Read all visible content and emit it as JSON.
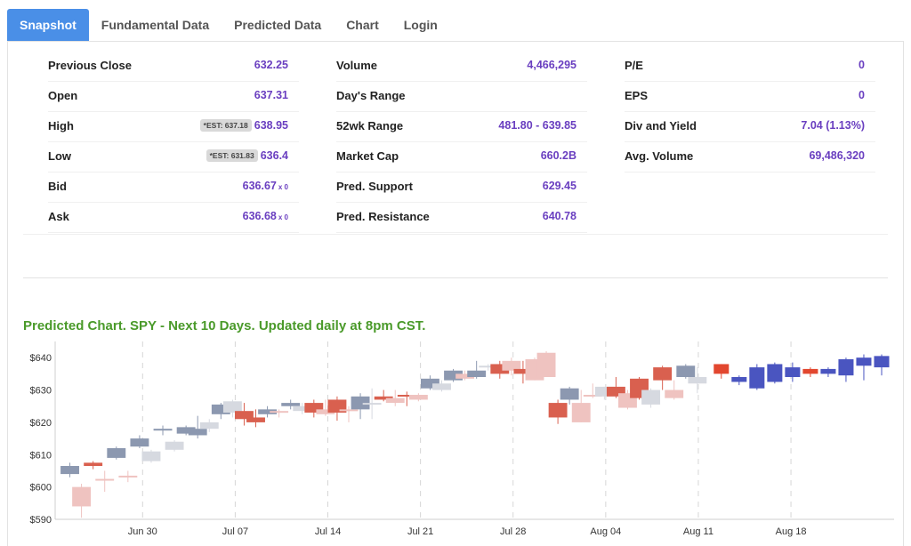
{
  "tabs": [
    {
      "label": "Snapshot",
      "active": true
    },
    {
      "label": "Fundamental Data",
      "active": false
    },
    {
      "label": "Predicted Data",
      "active": false
    },
    {
      "label": "Chart",
      "active": false
    },
    {
      "label": "Login",
      "active": false
    }
  ],
  "stats": {
    "col1": [
      {
        "label": "Previous Close",
        "value": "632.25"
      },
      {
        "label": "Open",
        "value": "637.31"
      },
      {
        "label": "High",
        "value": "638.95",
        "est": "*EST: 637.18"
      },
      {
        "label": "Low",
        "value": "636.4",
        "est": "*EST: 631.83"
      },
      {
        "label": "Bid",
        "value": "636.67",
        "suffix": "x 0"
      },
      {
        "label": "Ask",
        "value": "636.68",
        "suffix": "x 0"
      }
    ],
    "col2": [
      {
        "label": "Volume",
        "value": "4,466,295"
      },
      {
        "label": "Day's Range",
        "value": ""
      },
      {
        "label": "52wk Range",
        "value": "481.80 - 639.85"
      },
      {
        "label": "Market Cap",
        "value": "660.2B"
      },
      {
        "label": "Pred. Support",
        "value": "629.45"
      },
      {
        "label": "Pred. Resistance",
        "value": "640.78"
      }
    ],
    "col3": [
      {
        "label": "P/E",
        "value": "0"
      },
      {
        "label": "EPS",
        "value": "0"
      },
      {
        "label": "Div and Yield",
        "value": "7.04 (1.13%)"
      },
      {
        "label": "Avg. Volume",
        "value": "69,486,320"
      }
    ]
  },
  "chart_heading": "Predicted Chart. SPY - Next 10 Days. Updated daily at 8pm CST.",
  "colors": {
    "active_tab": "#4a8fe7",
    "value_text": "#6a3fc0",
    "heading_green": "#4a9a2a",
    "hist_up": "#8c98b0",
    "hist_up_light": "#d6d9e0",
    "hist_down": "#d9604f",
    "hist_down_light": "#efc3c0",
    "pred_up": "#4a55c0",
    "pred_down": "#e2472f"
  },
  "chart_data": {
    "type": "candlestick",
    "ylim": [
      590,
      645
    ],
    "y_ticks": [
      590,
      600,
      610,
      620,
      630,
      640
    ],
    "y_tick_labels": [
      "$590",
      "$600",
      "$610",
      "$620",
      "$630",
      "$640"
    ],
    "x_ticks": [
      {
        "label": "Jun 30",
        "index": 4
      },
      {
        "label": "Jul 07",
        "index": 9
      },
      {
        "label": "Jul 14",
        "index": 14
      },
      {
        "label": "Jul 21",
        "index": 19
      },
      {
        "label": "Jul 28",
        "index": 24
      },
      {
        "label": "Aug 04",
        "index": 29
      },
      {
        "label": "Aug 11",
        "index": 34
      },
      {
        "label": "Aug 18",
        "index": 39
      }
    ],
    "candles": [
      {
        "o": 604.0,
        "h": 607.5,
        "c": 606.5,
        "l": 603.0,
        "k": "hu"
      },
      {
        "o": 600.0,
        "h": 601.0,
        "c": 594.0,
        "l": 590.5,
        "k": "hdl"
      },
      {
        "o": 606.5,
        "h": 608.0,
        "c": 607.5,
        "l": 605.5,
        "k": "hd"
      },
      {
        "o": 602.5,
        "h": 605.0,
        "c": 602.0,
        "l": 598.5,
        "k": "hdl"
      },
      {
        "o": 609.0,
        "h": 612.5,
        "c": 612.0,
        "l": 608.5,
        "k": "hu"
      },
      {
        "o": 603.5,
        "h": 605.0,
        "c": 603.0,
        "l": 601.5,
        "k": "hdl"
      },
      {
        "o": 612.5,
        "h": 616.0,
        "c": 615.0,
        "l": 612.0,
        "k": "hu"
      },
      {
        "o": 608.0,
        "h": 611.5,
        "c": 611.0,
        "l": 607.5,
        "k": "hul"
      },
      {
        "o": 617.5,
        "h": 619.0,
        "c": 618.0,
        "l": 616.0,
        "k": "hu"
      },
      {
        "o": 611.5,
        "h": 614.5,
        "c": 614.0,
        "l": 611.0,
        "k": "hul"
      },
      {
        "o": 616.5,
        "h": 619.0,
        "c": 618.5,
        "l": 616.0,
        "k": "hu"
      },
      {
        "o": 616.0,
        "h": 622.0,
        "c": 618.0,
        "l": 615.0,
        "k": "hu"
      },
      {
        "o": 618.0,
        "h": 621.0,
        "c": 620.0,
        "l": 617.0,
        "k": "hul"
      },
      {
        "o": 622.5,
        "h": 626.0,
        "c": 625.5,
        "l": 621.0,
        "k": "hu"
      },
      {
        "o": 623.0,
        "h": 627.0,
        "c": 626.5,
        "l": 621.5,
        "k": "hul"
      },
      {
        "o": 623.5,
        "h": 626.0,
        "c": 621.0,
        "l": 619.0,
        "k": "hd"
      },
      {
        "o": 621.5,
        "h": 624.0,
        "c": 620.0,
        "l": 618.5,
        "k": "hd"
      },
      {
        "o": 622.5,
        "h": 625.0,
        "c": 624.0,
        "l": 621.5,
        "k": "hu"
      },
      {
        "o": 623.5,
        "h": 624.0,
        "c": 623.0,
        "l": 621.5,
        "k": "hdl"
      },
      {
        "o": 625.0,
        "h": 627.0,
        "c": 626.0,
        "l": 624.0,
        "k": "hu"
      },
      {
        "o": 623.5,
        "h": 626.0,
        "c": 625.0,
        "l": 622.5,
        "k": "hul"
      },
      {
        "o": 626.0,
        "h": 627.0,
        "c": 623.0,
        "l": 621.5,
        "k": "hd"
      },
      {
        "o": 624.0,
        "h": 627.0,
        "c": 622.5,
        "l": 622.0,
        "k": "hdl"
      },
      {
        "o": 627.0,
        "h": 628.0,
        "c": 623.0,
        "l": 620.5,
        "k": "hd"
      },
      {
        "o": 624.0,
        "h": 625.0,
        "c": 623.5,
        "l": 620.0,
        "k": "hdl"
      },
      {
        "o": 624.0,
        "h": 629.0,
        "c": 628.0,
        "l": 621.0,
        "k": "hu"
      },
      {
        "o": 626.0,
        "h": 630.5,
        "c": 626.0,
        "l": 621.0,
        "k": "hul"
      },
      {
        "o": 628.0,
        "h": 630.0,
        "c": 627.0,
        "l": 626.5,
        "k": "hd"
      },
      {
        "o": 627.5,
        "h": 630.0,
        "c": 626.0,
        "l": 625.0,
        "k": "hdl"
      },
      {
        "o": 628.5,
        "h": 629.5,
        "c": 628.0,
        "l": 625.0,
        "k": "hd"
      },
      {
        "o": 627.0,
        "h": 629.0,
        "c": 628.5,
        "l": 626.5,
        "k": "hdl"
      },
      {
        "o": 630.5,
        "h": 634.5,
        "c": 633.5,
        "l": 630.0,
        "k": "hu"
      },
      {
        "o": 630.0,
        "h": 633.0,
        "c": 632.0,
        "l": 629.5,
        "k": "hul"
      },
      {
        "o": 633.0,
        "h": 636.5,
        "c": 636.0,
        "l": 632.5,
        "k": "hu"
      },
      {
        "o": 633.5,
        "h": 636.0,
        "c": 635.0,
        "l": 633.0,
        "k": "hdl"
      },
      {
        "o": 634.0,
        "h": 639.0,
        "c": 636.0,
        "l": 633.5,
        "k": "hu"
      },
      {
        "o": 637.5,
        "h": 638.0,
        "c": 637.0,
        "l": 636.0,
        "k": "hul"
      },
      {
        "o": 638.0,
        "h": 639.0,
        "c": 635.0,
        "l": 633.5,
        "k": "hd"
      },
      {
        "o": 639.0,
        "h": 640.0,
        "c": 636.0,
        "l": 634.5,
        "k": "hdl"
      },
      {
        "o": 636.5,
        "h": 639.0,
        "c": 635.0,
        "l": 632.0,
        "k": "hd"
      },
      {
        "o": 639.5,
        "h": 640.0,
        "c": 633.0,
        "l": 633.0,
        "k": "hdl"
      },
      {
        "o": 641.5,
        "h": 642.0,
        "c": 634.0,
        "l": 634.0,
        "k": "hdl"
      },
      {
        "o": 626.0,
        "h": 627.0,
        "c": 621.5,
        "l": 619.5,
        "k": "hd"
      },
      {
        "o": 627.0,
        "h": 631.0,
        "c": 630.5,
        "l": 625.5,
        "k": "hu"
      },
      {
        "o": 626.0,
        "h": 630.0,
        "c": 620.0,
        "l": 620.0,
        "k": "hdl"
      },
      {
        "o": 628.5,
        "h": 632.0,
        "c": 628.0,
        "l": 627.5,
        "k": "hdl"
      },
      {
        "o": 628.0,
        "h": 631.0,
        "c": 631.0,
        "l": 627.0,
        "k": "hul"
      },
      {
        "o": 631.0,
        "h": 634.0,
        "c": 628.0,
        "l": 627.5,
        "k": "hd"
      },
      {
        "o": 629.0,
        "h": 630.0,
        "c": 624.5,
        "l": 624.0,
        "k": "hdl"
      },
      {
        "o": 633.5,
        "h": 634.0,
        "c": 627.5,
        "l": 627.0,
        "k": "hd"
      },
      {
        "o": 625.5,
        "h": 630.5,
        "c": 630.0,
        "l": 624.5,
        "k": "hul"
      },
      {
        "o": 637.0,
        "h": 637.5,
        "c": 633.0,
        "l": 630.0,
        "k": "hd"
      },
      {
        "o": 630.0,
        "h": 633.0,
        "c": 627.5,
        "l": 627.0,
        "k": "hdl"
      },
      {
        "o": 634.0,
        "h": 638.0,
        "c": 637.5,
        "l": 633.5,
        "k": "hu"
      },
      {
        "o": 632.0,
        "h": 637.0,
        "c": 634.0,
        "l": 629.0,
        "k": "hul"
      },
      {
        "o": 638.0,
        "h": 638.0,
        "c": 635.0,
        "l": 633.5,
        "k": "pd"
      },
      {
        "o": 632.5,
        "h": 634.5,
        "c": 634.0,
        "l": 631.5,
        "k": "pu"
      },
      {
        "o": 630.5,
        "h": 638.0,
        "c": 637.0,
        "l": 630.0,
        "k": "pu"
      },
      {
        "o": 632.5,
        "h": 638.5,
        "c": 638.0,
        "l": 632.0,
        "k": "pu"
      },
      {
        "o": 634.0,
        "h": 638.5,
        "c": 637.0,
        "l": 632.5,
        "k": "pu"
      },
      {
        "o": 636.5,
        "h": 637.0,
        "c": 635.0,
        "l": 634.0,
        "k": "pd"
      },
      {
        "o": 635.0,
        "h": 637.0,
        "c": 636.5,
        "l": 634.0,
        "k": "pu"
      },
      {
        "o": 634.5,
        "h": 640.0,
        "c": 639.5,
        "l": 632.5,
        "k": "pu"
      },
      {
        "o": 637.5,
        "h": 641.0,
        "c": 640.0,
        "l": 633.0,
        "k": "pu"
      },
      {
        "o": 637.0,
        "h": 641.0,
        "c": 640.5,
        "l": 634.5,
        "k": "pu"
      }
    ]
  }
}
